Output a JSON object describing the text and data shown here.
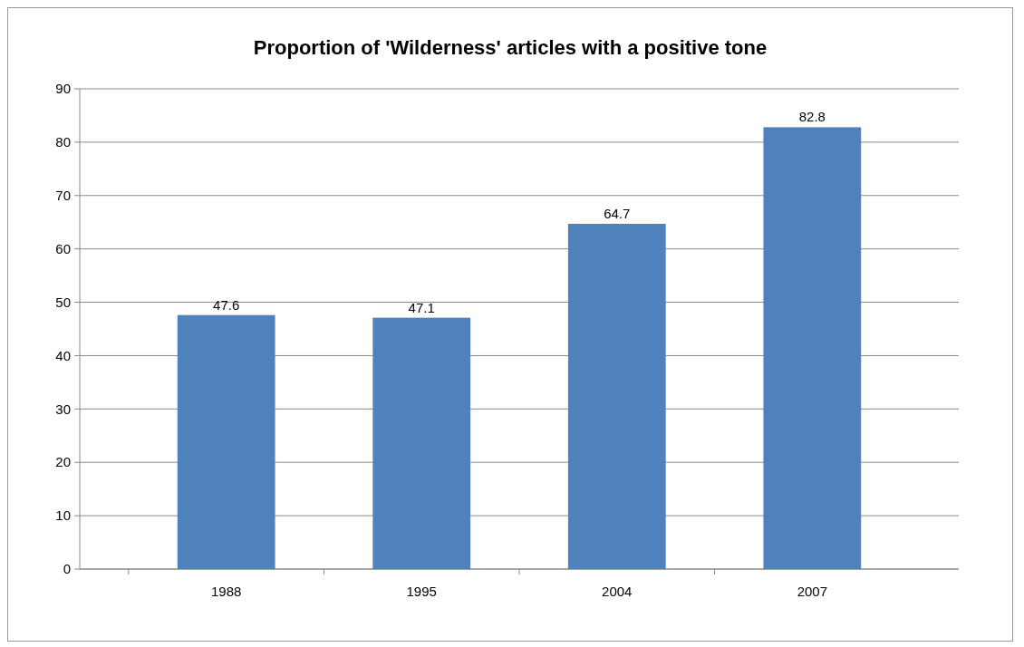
{
  "chart_data": {
    "type": "bar",
    "title": "Proportion of 'Wilderness' articles with a positive tone",
    "categories": [
      "1988",
      "1995",
      "2004",
      "2007"
    ],
    "values": [
      47.6,
      47.1,
      64.7,
      82.8
    ],
    "color": "#4f81bd",
    "ylim": [
      0,
      90
    ],
    "yticks": [
      0,
      10,
      20,
      30,
      40,
      50,
      60,
      70,
      80,
      90
    ],
    "grid": "y",
    "data_labels": true
  }
}
